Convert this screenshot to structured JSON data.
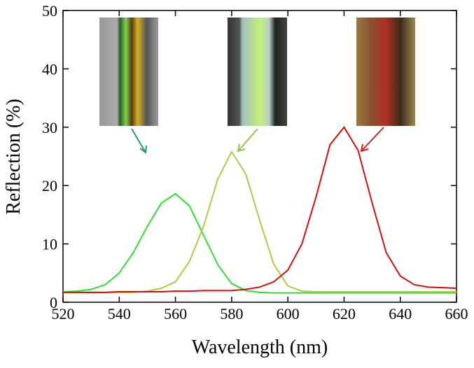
{
  "chart_data": {
    "type": "line",
    "x": [
      520,
      525,
      530,
      535,
      540,
      545,
      550,
      555,
      560,
      565,
      570,
      575,
      580,
      585,
      590,
      595,
      600,
      605,
      610,
      615,
      620,
      625,
      630,
      635,
      640,
      645,
      650,
      655,
      660
    ],
    "series": [
      {
        "color": "#33dd33",
        "values": [
          1.8,
          1.9,
          2.2,
          3.0,
          5.0,
          8.5,
          13,
          17,
          18.6,
          16.5,
          11.5,
          6.5,
          3.2,
          2.0,
          1.7,
          1.6,
          1.6,
          1.6,
          1.6,
          1.6,
          1.6,
          1.6,
          1.6,
          1.6,
          1.6,
          1.6,
          1.6,
          1.6,
          1.6
        ]
      },
      {
        "color": "#b5c846",
        "values": [
          1.7,
          1.7,
          1.7,
          1.7,
          1.7,
          1.7,
          1.9,
          2.4,
          3.5,
          7,
          13,
          21,
          25.8,
          22,
          14,
          6.5,
          2.8,
          1.9,
          1.8,
          1.8,
          1.8,
          1.8,
          1.8,
          1.8,
          1.8,
          1.8,
          1.8,
          1.8,
          1.8
        ]
      },
      {
        "color": "#cc1111",
        "values": [
          1.7,
          1.7,
          1.7,
          1.7,
          1.8,
          1.8,
          1.8,
          1.8,
          1.9,
          1.9,
          2.0,
          2.0,
          2.0,
          2.2,
          2.6,
          3.5,
          5.5,
          10,
          18,
          27,
          30,
          26,
          17,
          8.5,
          4.5,
          3.0,
          2.6,
          2.5,
          2.4
        ]
      }
    ],
    "xlabel": "Wavelength (nm)",
    "ylabel": "Reflection (%)",
    "xlim": [
      520,
      660
    ],
    "ylim": [
      0,
      50
    ],
    "xticks": [
      520,
      540,
      560,
      580,
      600,
      620,
      640,
      660
    ],
    "yticks": [
      0,
      10,
      20,
      30,
      40,
      50
    ]
  }
}
